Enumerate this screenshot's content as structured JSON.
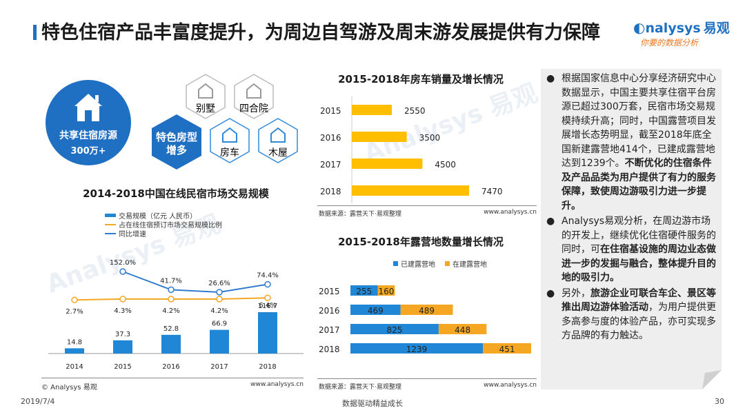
{
  "header": {
    "title": "特色住宿产品丰富度提升，为周边自驾游及周末游发展提供有力保障",
    "logo_brand": "nalysys",
    "logo_brand_cn": "易观",
    "logo_slogan": "你要的数据分析"
  },
  "infographic": {
    "circle_title": "共享住宿房源",
    "circle_value": "300万+",
    "center_label_line1": "特色房型",
    "center_label_line2": "增多",
    "types": [
      "别墅",
      "四合院",
      "房车",
      "木屋"
    ]
  },
  "chart_data": [
    {
      "type": "bar",
      "title": "2014-2018中国在线民宿市场交易规模",
      "categories": [
        "2014",
        "2015",
        "2016",
        "2017",
        "2018"
      ],
      "series": [
        {
          "name": "交易规模（亿元 人民币）",
          "values": [
            14.8,
            37.3,
            52.8,
            66.9,
            116.7
          ],
          "labels": [
            "14.8",
            "37.3",
            "52.8",
            "66.9",
            "116.7"
          ]
        },
        {
          "name": "占在线住宿预订市场交易规模比例",
          "values": [
            2.7,
            4.3,
            4.2,
            4.2,
            6.4
          ],
          "labels": [
            "2.7%",
            "4.3%",
            "4.2%",
            "4.2%",
            "6.4%"
          ]
        },
        {
          "name": "同比增速",
          "values": [
            null,
            152.0,
            41.7,
            26.6,
            74.4
          ],
          "labels": [
            "",
            "152.0%",
            "41.7%",
            "26.6%",
            "74.4%"
          ]
        }
      ],
      "legend": "top-left",
      "colors": {
        "bar": "#1f87d6",
        "share": "#f5a623",
        "growth": "#2f7bd0"
      },
      "copyright": "© Analysys 易观",
      "site": "www.analysys.cn"
    },
    {
      "type": "bar",
      "orientation": "horizontal",
      "title": "2015-2018年房车销量及增长情况",
      "categories": [
        "2015",
        "2016",
        "2017",
        "2018"
      ],
      "values": [
        2550,
        3500,
        4500,
        7470
      ],
      "labels": [
        "2550",
        "3500",
        "4500",
        "7470"
      ],
      "colors": {
        "bar": "#ffbf00"
      },
      "source": "数据来源：露营天下·易观整理",
      "site": "www.analysys.cn"
    },
    {
      "type": "bar",
      "orientation": "horizontal",
      "stacked": true,
      "title": "2015-2018年露营地数量增长情况",
      "categories": [
        "2015",
        "2016",
        "2017",
        "2018"
      ],
      "series": [
        {
          "name": "已建露营地",
          "values": [
            255,
            469,
            825,
            1239
          ]
        },
        {
          "name": "在建露营地",
          "values": [
            160,
            489,
            448,
            451
          ]
        }
      ],
      "legend": "top-center",
      "colors": {
        "built": "#1f87d6",
        "building": "#f5a623"
      },
      "source": "数据来源：露营天下·易观整理",
      "site": "www.analysys.cn"
    }
  ],
  "right_panel": {
    "bullets": [
      [
        {
          "text": "根据国家信息中心分享经济研究中心数据显示，中国主要共享住宿平台房源已超过300万套，民宿市场交易规模持续升高；同时，中国露营项目发展增长态势明显，截至2018年底全国新建露营地414个，已建成露营地达到1239个。",
          "bold": false
        },
        {
          "text": "不断优化的住宿条件及产品品类为用户提供了有力的服务保障，致使周边游吸引力进一步提升。",
          "bold": true
        }
      ],
      [
        {
          "text": "Analysys易观分析，在周边游市场的开发上，继续优化住宿硬件服务的同时，可",
          "bold": false
        },
        {
          "text": "在住宿基设施的周边业态做进一步的发掘与融合，整体提升目的地的吸引力。",
          "bold": true
        }
      ],
      [
        {
          "text": "另外，",
          "bold": false
        },
        {
          "text": "旅游企业可联合车企、景区等推出周边游体验活动",
          "bold": true
        },
        {
          "text": "，为用户提供更多高参与度的体验产品，亦可实现多方品牌的有力触达。",
          "bold": false
        }
      ]
    ]
  },
  "footer": {
    "date": "2019/7/4",
    "slogan": "数据驱动精益成长",
    "page": "30"
  }
}
